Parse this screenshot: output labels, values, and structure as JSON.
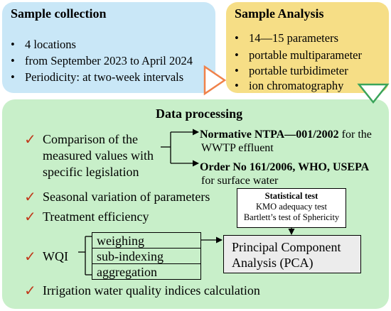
{
  "sample_collection": {
    "title": "Sample collection",
    "items": [
      "4 locations",
      "from September 2023 to April 2024",
      "Periodicity: at two-week intervals"
    ]
  },
  "sample_analysis": {
    "title": "Sample Analysis",
    "items": [
      "14—15 parameters",
      "portable multiparameter",
      "portable turbidimeter",
      "ion chromatography"
    ]
  },
  "data_processing": {
    "title": "Data processing",
    "comparison": {
      "label_lines": [
        "Comparison of the",
        "measured values with",
        "specific legislation"
      ],
      "ntpa_bold": "Normative NTPA—001/2002",
      "ntpa_rest": " for the",
      "ntpa_line2": "WWTP effluent",
      "order_bold": "Order No 161/2006, WHO, USEPA",
      "order_line2": "for surface water"
    },
    "seasonal": "Seasonal variation of parameters",
    "treatment": "Treatment efficiency",
    "statistical": {
      "title": "Statistical test",
      "line1": "KMO adequacy test",
      "line2": "Bartlett’s test of Sphericity"
    },
    "wqi": {
      "label": "WQI",
      "steps": [
        "weighing",
        "sub-indexing",
        "aggregation"
      ]
    },
    "pca": {
      "line1": "Principal Component",
      "line2": "Analysis (PCA)"
    },
    "irrigation": "Irrigation water quality indices calculation"
  },
  "colors": {
    "collection_bg": "#c9e7f7",
    "analysis_bg": "#f6de86",
    "processing_bg": "#c8efc9",
    "check": "#c0391b",
    "triangle_orange": "#f0824a",
    "triangle_green": "#3aa45a"
  }
}
